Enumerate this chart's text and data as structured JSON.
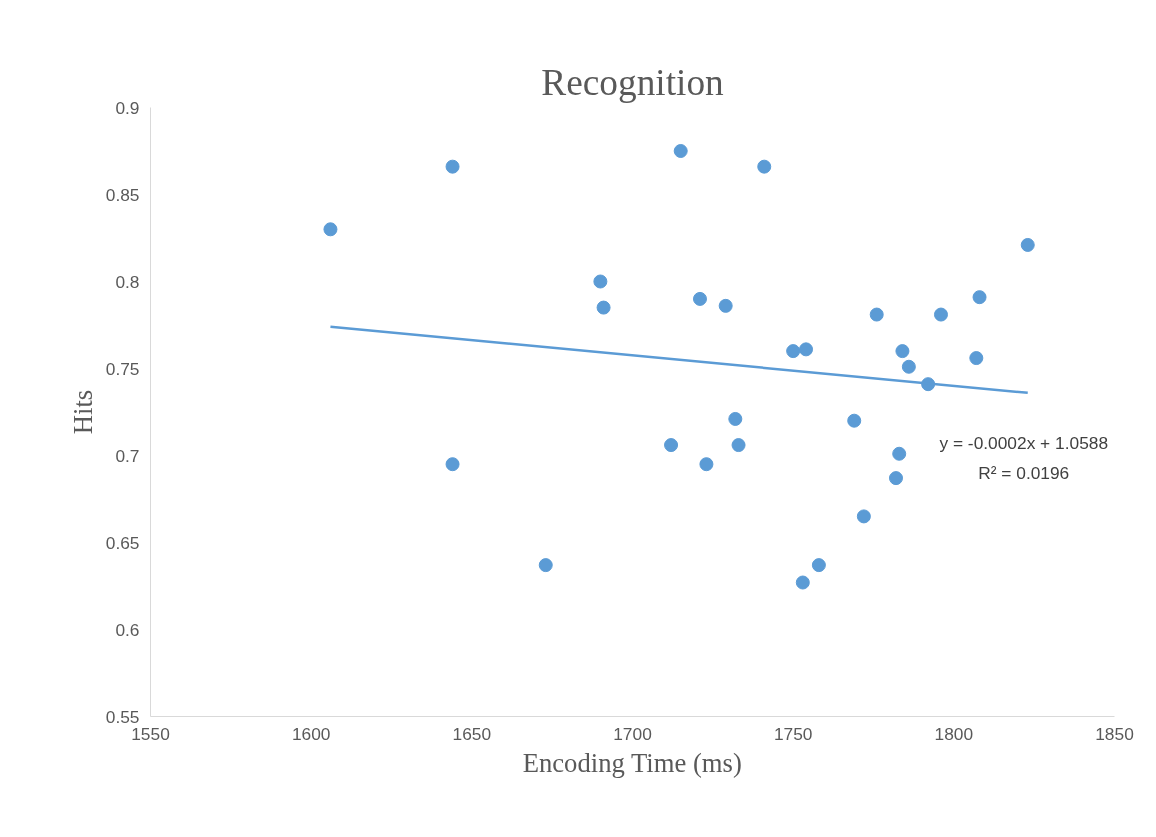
{
  "chart_data": {
    "type": "scatter",
    "title": "Recognition",
    "xlabel": "Encoding Time (ms)",
    "ylabel": "Hits",
    "xlim": [
      1550,
      1850
    ],
    "xticks": [
      1550,
      1600,
      1650,
      1700,
      1750,
      1800,
      1850
    ],
    "ylim": [
      0.55,
      0.9
    ],
    "yticks": [
      0.55,
      0.6,
      0.65,
      0.7,
      0.75,
      0.8,
      0.85,
      0.9
    ],
    "grid": false,
    "marker": "circle",
    "series": [
      {
        "color": "#5b9bd5",
        "x": [
          1606,
          1644,
          1644,
          1673,
          1690,
          1691,
          1715,
          1712,
          1721,
          1723,
          1729,
          1732,
          1733,
          1741,
          1750,
          1754,
          1753,
          1758,
          1769,
          1772,
          1776,
          1782,
          1783,
          1784,
          1786,
          1792,
          1796,
          1807,
          1808,
          1823
        ],
        "values": [
          0.83,
          0.866,
          0.695,
          0.637,
          0.8,
          0.785,
          0.875,
          0.706,
          0.79,
          0.695,
          0.786,
          0.721,
          0.706,
          0.866,
          0.76,
          0.761,
          0.627,
          0.637,
          0.72,
          0.665,
          0.781,
          0.687,
          0.701,
          0.76,
          0.751,
          0.741,
          0.781,
          0.756,
          0.791,
          0.821
        ]
      },
      {
        "type": "line",
        "marker": "none",
        "color": "#5b9bd5",
        "x": [
          1606,
          1823
        ],
        "values": [
          0.774,
          0.736
        ]
      }
    ],
    "annotations": [
      "y = -0.0002x + 1.0588",
      "R² = 0.0196"
    ]
  }
}
